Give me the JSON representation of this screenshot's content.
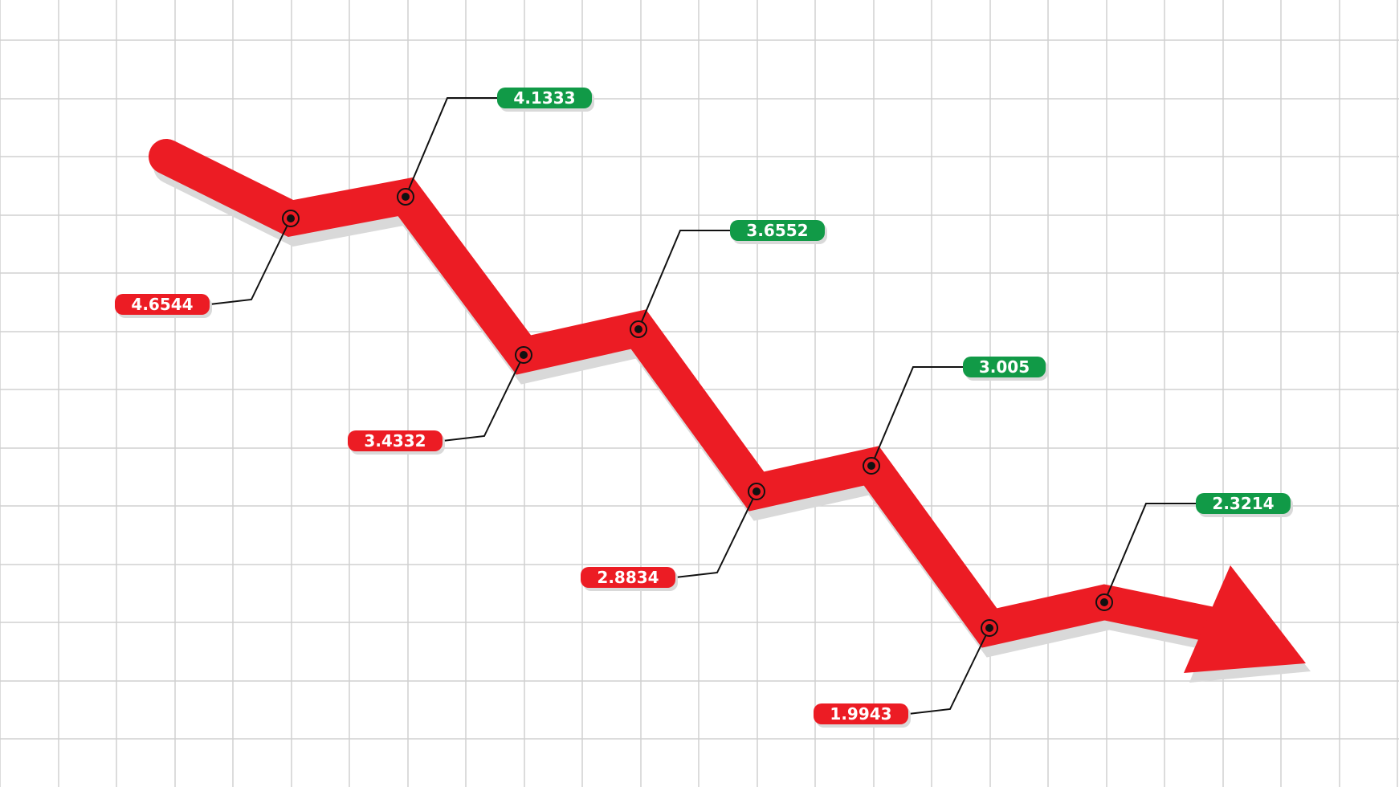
{
  "chart_data": {
    "type": "line",
    "title": "",
    "xlabel": "",
    "ylabel": "",
    "grid": true,
    "trend": "down",
    "end_marker": "arrow",
    "series": [
      {
        "points": [
          {
            "value": 4.6544,
            "color": "red"
          },
          {
            "value": 4.1333,
            "color": "green"
          },
          {
            "value": 3.4332,
            "color": "red"
          },
          {
            "value": 3.6552,
            "color": "green"
          },
          {
            "value": 2.8834,
            "color": "red"
          },
          {
            "value": 3.005,
            "color": "green"
          },
          {
            "value": 1.9943,
            "color": "red"
          },
          {
            "value": 2.3214,
            "color": "green"
          }
        ]
      }
    ]
  },
  "colors": {
    "line": "#ec1c24",
    "red_label": "#ec1c24",
    "green_label": "#119a47",
    "grid": "#d0d0d0",
    "shadow": "#d9d9d9",
    "background": "#ffffff"
  }
}
